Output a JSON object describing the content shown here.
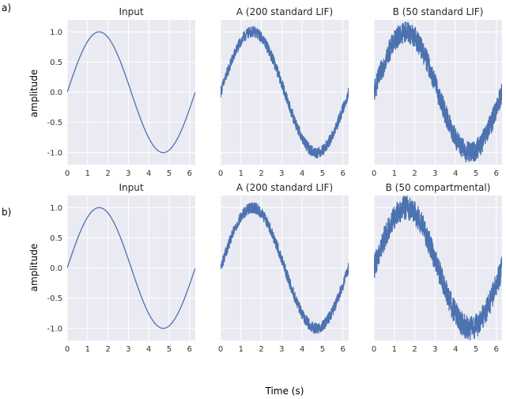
{
  "figure": {
    "row_labels": [
      "a)",
      "b)"
    ],
    "xlabel": "Time (s)",
    "ylabel": "amplitude",
    "line_color": "#4c72b0"
  },
  "chart_data": [
    {
      "type": "line",
      "row": "a)",
      "title": "Input",
      "function": "sin",
      "noise_amplitude": 0.0,
      "x_range": [
        0,
        6.2832
      ],
      "xlim": [
        0,
        6.2832
      ],
      "ylim": [
        -1.2,
        1.2
      ],
      "xticks": [
        "0",
        "1",
        "2",
        "3",
        "4",
        "5",
        "6"
      ],
      "yticks": [
        "1.0",
        "0.5",
        "0.0",
        "-0.5",
        "-1.0"
      ],
      "show_yticks": true,
      "grid": true
    },
    {
      "type": "line",
      "row": "a)",
      "title": "A (200 standard LIF)",
      "function": "sin",
      "noise_amplitude": 0.09,
      "x_range": [
        0,
        6.2832
      ],
      "xlim": [
        0,
        6.2832
      ],
      "ylim": [
        -1.2,
        1.2
      ],
      "xticks": [
        "0",
        "1",
        "2",
        "3",
        "4",
        "5",
        "6"
      ],
      "yticks": [],
      "show_yticks": false,
      "grid": true
    },
    {
      "type": "line",
      "row": "a)",
      "title": "B (50 standard LIF)",
      "function": "sin",
      "noise_amplitude": 0.18,
      "x_range": [
        0,
        6.2832
      ],
      "xlim": [
        0,
        6.2832
      ],
      "ylim": [
        -1.2,
        1.2
      ],
      "xticks": [
        "0",
        "1",
        "2",
        "3",
        "4",
        "5",
        "6"
      ],
      "yticks": [],
      "show_yticks": false,
      "grid": true
    },
    {
      "type": "line",
      "row": "b)",
      "title": "Input",
      "function": "sin",
      "noise_amplitude": 0.0,
      "x_range": [
        0,
        6.2832
      ],
      "xlim": [
        0,
        6.2832
      ],
      "ylim": [
        -1.2,
        1.2
      ],
      "xticks": [
        "0",
        "1",
        "2",
        "3",
        "4",
        "5",
        "6"
      ],
      "yticks": [
        "1.0",
        "0.5",
        "0.0",
        "-0.5",
        "-1.0"
      ],
      "show_yticks": true,
      "grid": true
    },
    {
      "type": "line",
      "row": "b)",
      "title": "A (200 standard LIF)",
      "function": "sin",
      "noise_amplitude": 0.09,
      "x_range": [
        0,
        6.2832
      ],
      "xlim": [
        0,
        6.2832
      ],
      "ylim": [
        -1.2,
        1.2
      ],
      "xticks": [
        "0",
        "1",
        "2",
        "3",
        "4",
        "5",
        "6"
      ],
      "yticks": [],
      "show_yticks": false,
      "grid": true
    },
    {
      "type": "line",
      "row": "b)",
      "title": "B (50 compartmental)",
      "function": "sin",
      "noise_amplitude": 0.2,
      "x_range": [
        0,
        6.2832
      ],
      "xlim": [
        0,
        6.2832
      ],
      "ylim": [
        -1.2,
        1.2
      ],
      "xticks": [
        "0",
        "1",
        "2",
        "3",
        "4",
        "5",
        "6"
      ],
      "yticks": [],
      "show_yticks": false,
      "grid": true
    }
  ]
}
